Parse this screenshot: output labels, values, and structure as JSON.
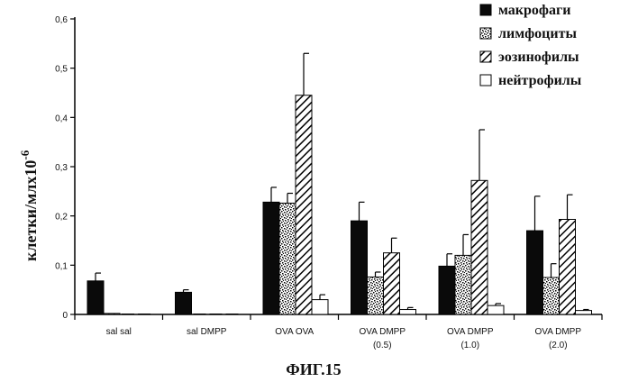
{
  "chart_data": {
    "type": "bar",
    "title": "",
    "ylabel": "клетки/млх10",
    "ylabel_exponent": "-6",
    "figure_label": "ФИГ.15",
    "ylim": [
      0,
      0.6
    ],
    "yticks": [
      "0",
      "0,1",
      "0,2",
      "0,3",
      "0,4",
      "0,5",
      "0,6"
    ],
    "categories": [
      {
        "line1": "sal sal",
        "line2": ""
      },
      {
        "line1": "sal DMPP",
        "line2": ""
      },
      {
        "line1": "OVA OVA",
        "line2": ""
      },
      {
        "line1": "OVA DMPP",
        "line2": "(0.5)"
      },
      {
        "line1": "OVA DMPP",
        "line2": "(1.0)"
      },
      {
        "line1": "OVA DMPP",
        "line2": "(2.0)"
      }
    ],
    "series": [
      {
        "name": "макрофаги",
        "pattern": "solid",
        "values": [
          0.068,
          0.045,
          0.228,
          0.19,
          0.098,
          0.17
        ],
        "errors": [
          0.016,
          0.005,
          0.03,
          0.038,
          0.025,
          0.07
        ]
      },
      {
        "name": "лимфоциты",
        "pattern": "speckle",
        "values": [
          0.002,
          0.0,
          0.226,
          0.076,
          0.12,
          0.075
        ],
        "errors": [
          0.0,
          0.0,
          0.02,
          0.01,
          0.042,
          0.028
        ]
      },
      {
        "name": "эозинофилы",
        "pattern": "hatch",
        "values": [
          0.0,
          0.0,
          0.445,
          0.125,
          0.272,
          0.193
        ],
        "errors": [
          0.0,
          0.0,
          0.085,
          0.03,
          0.103,
          0.05
        ]
      },
      {
        "name": "нейтрофилы",
        "pattern": "white",
        "values": [
          0.0,
          0.0,
          0.03,
          0.01,
          0.018,
          0.008
        ],
        "errors": [
          0.0,
          0.0,
          0.01,
          0.004,
          0.004,
          0.002
        ]
      }
    ]
  }
}
